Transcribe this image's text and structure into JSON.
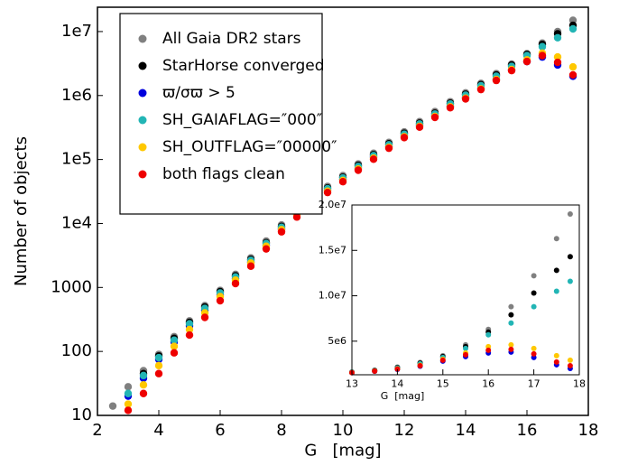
{
  "chart_data": [
    {
      "type": "scatter",
      "xlabel": "G   [mag]",
      "ylabel": "Number of objects",
      "yscale": "log",
      "xlim": [
        2,
        18
      ],
      "ylim": [
        10,
        24000000
      ],
      "xticks": [
        2,
        4,
        6,
        8,
        10,
        12,
        14,
        16,
        18
      ],
      "yticks": [
        10,
        100,
        1000,
        {
          "value": 10000,
          "label": "1e4"
        },
        {
          "value": 100000,
          "label": "1e5"
        },
        {
          "value": 1000000,
          "label": "1e6"
        },
        {
          "value": 10000000,
          "label": "1e7"
        }
      ],
      "legend": "upper left",
      "x": [
        2.5,
        3,
        3.5,
        4,
        4.5,
        5,
        5.5,
        6,
        6.5,
        7,
        7.5,
        8,
        8.5,
        9,
        9.5,
        10,
        10.5,
        11,
        11.5,
        12,
        12.5,
        13,
        13.5,
        14,
        14.5,
        15,
        15.5,
        16,
        16.5,
        17,
        17.5
      ],
      "series": [
        {
          "name": "All Gaia DR2 stars",
          "color": "#808080",
          "values": [
            14,
            28,
            50,
            90,
            170,
            300,
            520,
            900,
            1600,
            2900,
            5300,
            9500,
            16000,
            25000,
            38000,
            56000,
            85000,
            125000,
            185000,
            270000,
            390000,
            560000,
            800000,
            1100000,
            1550000,
            2200000,
            3100000,
            4500000,
            6600000,
            10000000,
            15000000
          ]
        },
        {
          "name": "StarHorse converged",
          "color": "#000000",
          "values": [
            null,
            null,
            45,
            85,
            160,
            285,
            495,
            860,
            1520,
            2750,
            5000,
            9000,
            15200,
            23800,
            36000,
            53000,
            81000,
            119000,
            176000,
            257000,
            370000,
            530000,
            760000,
            1050000,
            1480000,
            2100000,
            3000000,
            4400000,
            6300000,
            9200000,
            12500000
          ]
        },
        {
          "name": "ϖ/σϖ > 5",
          "color": "#0000dd",
          "values": [
            null,
            20,
            38,
            75,
            140,
            250,
            440,
            770,
            1380,
            2500,
            4600,
            8300,
            14000,
            22000,
            33500,
            49000,
            74000,
            109000,
            160000,
            235000,
            340000,
            480000,
            680000,
            930000,
            1300000,
            1800000,
            2500000,
            3400000,
            4000000,
            3000000,
            2000000
          ]
        },
        {
          "name": "SH_GAIAFLAG=″000″",
          "color": "#22b5b5",
          "values": [
            null,
            22,
            42,
            80,
            150,
            270,
            470,
            820,
            1460,
            2650,
            4850,
            8700,
            14700,
            23000,
            35000,
            51500,
            78000,
            115000,
            170000,
            248000,
            358000,
            512000,
            735000,
            1010000,
            1420000,
            2000000,
            2850000,
            4200000,
            5800000,
            8000000,
            11000000
          ]
        },
        {
          "name": "SH_OUTFLAG=″00000″",
          "color": "#ffc800",
          "values": [
            null,
            15,
            30,
            60,
            120,
            220,
            400,
            720,
            1300,
            2400,
            4400,
            8000,
            13500,
            21000,
            32000,
            47000,
            71000,
            105000,
            155000,
            228000,
            330000,
            470000,
            665000,
            910000,
            1270000,
            1780000,
            2550000,
            3600000,
            4600000,
            4000000,
            2800000
          ]
        },
        {
          "name": "both flags clean",
          "color": "#ee0000",
          "values": [
            null,
            12,
            22,
            45,
            95,
            180,
            340,
            620,
            1150,
            2150,
            4000,
            7400,
            12600,
            19800,
            30500,
            45000,
            68000,
            101000,
            150000,
            220000,
            320000,
            455000,
            645000,
            885000,
            1240000,
            1720000,
            2450000,
            3400000,
            4200000,
            3300000,
            2100000
          ]
        }
      ]
    },
    {
      "type": "scatter",
      "xlabel": "G  [mag]",
      "xlim": [
        13,
        18
      ],
      "ylim": [
        1300000,
        20000000
      ],
      "xticks": [
        13,
        14,
        15,
        16,
        17,
        18
      ],
      "yticks": [
        {
          "value": 5000000,
          "label": "5e6"
        },
        {
          "value": 10000000,
          "label": "1.0e7"
        },
        {
          "value": 15000000,
          "label": "1.5e7"
        },
        {
          "value": 20000000,
          "label": "2.0e7"
        }
      ],
      "x": [
        13,
        13.5,
        14,
        14.5,
        15,
        15.5,
        16,
        16.5,
        17,
        17.5,
        17.8
      ],
      "series": [
        {
          "color": "#808080",
          "values": [
            1600000,
            1800000,
            2150000,
            2650000,
            3400000,
            4600000,
            6300000,
            8800000,
            12200000,
            16300000,
            19000000
          ]
        },
        {
          "color": "#000000",
          "values": [
            1580000,
            1770000,
            2100000,
            2580000,
            3300000,
            4400000,
            6000000,
            7900000,
            10300000,
            12800000,
            14300000
          ]
        },
        {
          "color": "#0000dd",
          "values": [
            1520000,
            1680000,
            1900000,
            2250000,
            2800000,
            3300000,
            3700000,
            3800000,
            3200000,
            2400000,
            2000000
          ]
        },
        {
          "color": "#22b5b5",
          "values": [
            1560000,
            1740000,
            2050000,
            2500000,
            3200000,
            4200000,
            5700000,
            7000000,
            8800000,
            10500000,
            11600000
          ]
        },
        {
          "color": "#ffc800",
          "values": [
            1540000,
            1710000,
            1960000,
            2350000,
            3000000,
            3700000,
            4400000,
            4600000,
            4200000,
            3400000,
            2900000
          ]
        },
        {
          "color": "#ee0000",
          "values": [
            1530000,
            1700000,
            1930000,
            2300000,
            2900000,
            3500000,
            4000000,
            4100000,
            3600000,
            2700000,
            2300000
          ]
        }
      ]
    }
  ]
}
